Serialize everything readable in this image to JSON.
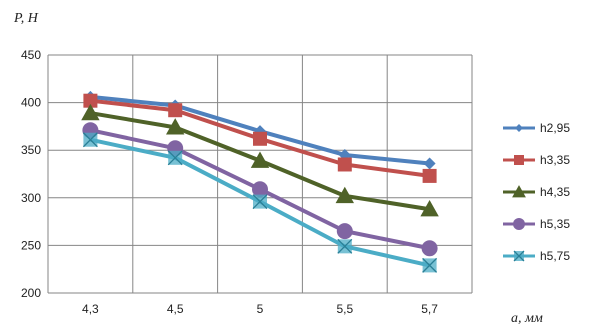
{
  "chart_data": {
    "type": "line",
    "categories": [
      "4,3",
      "4,5",
      "5",
      "5,5",
      "5,7"
    ],
    "ylabel": "P, H",
    "xlabel": "a, мм",
    "ylim": [
      200,
      450
    ],
    "yticks": [
      "200",
      "250",
      "300",
      "350",
      "400",
      "450"
    ],
    "grid": true,
    "legend_position": "right",
    "series": [
      {
        "name": "h2,95",
        "values": [
          406,
          397,
          370,
          345,
          336
        ],
        "color": "#4f81bd",
        "marker": "diamond"
      },
      {
        "name": "h3,35",
        "values": [
          402,
          392,
          362,
          335,
          323
        ],
        "color": "#c0504d",
        "marker": "square"
      },
      {
        "name": "h4,35",
        "values": [
          389,
          374,
          339,
          302,
          288
        ],
        "color": "#4f6228",
        "marker": "triangle"
      },
      {
        "name": "h5,35",
        "values": [
          371,
          352,
          309,
          265,
          247
        ],
        "color": "#8064a2",
        "marker": "circle"
      },
      {
        "name": "h5,75",
        "values": [
          361,
          342,
          296,
          249,
          229
        ],
        "color": "#4bacc6",
        "marker": "x"
      }
    ]
  }
}
